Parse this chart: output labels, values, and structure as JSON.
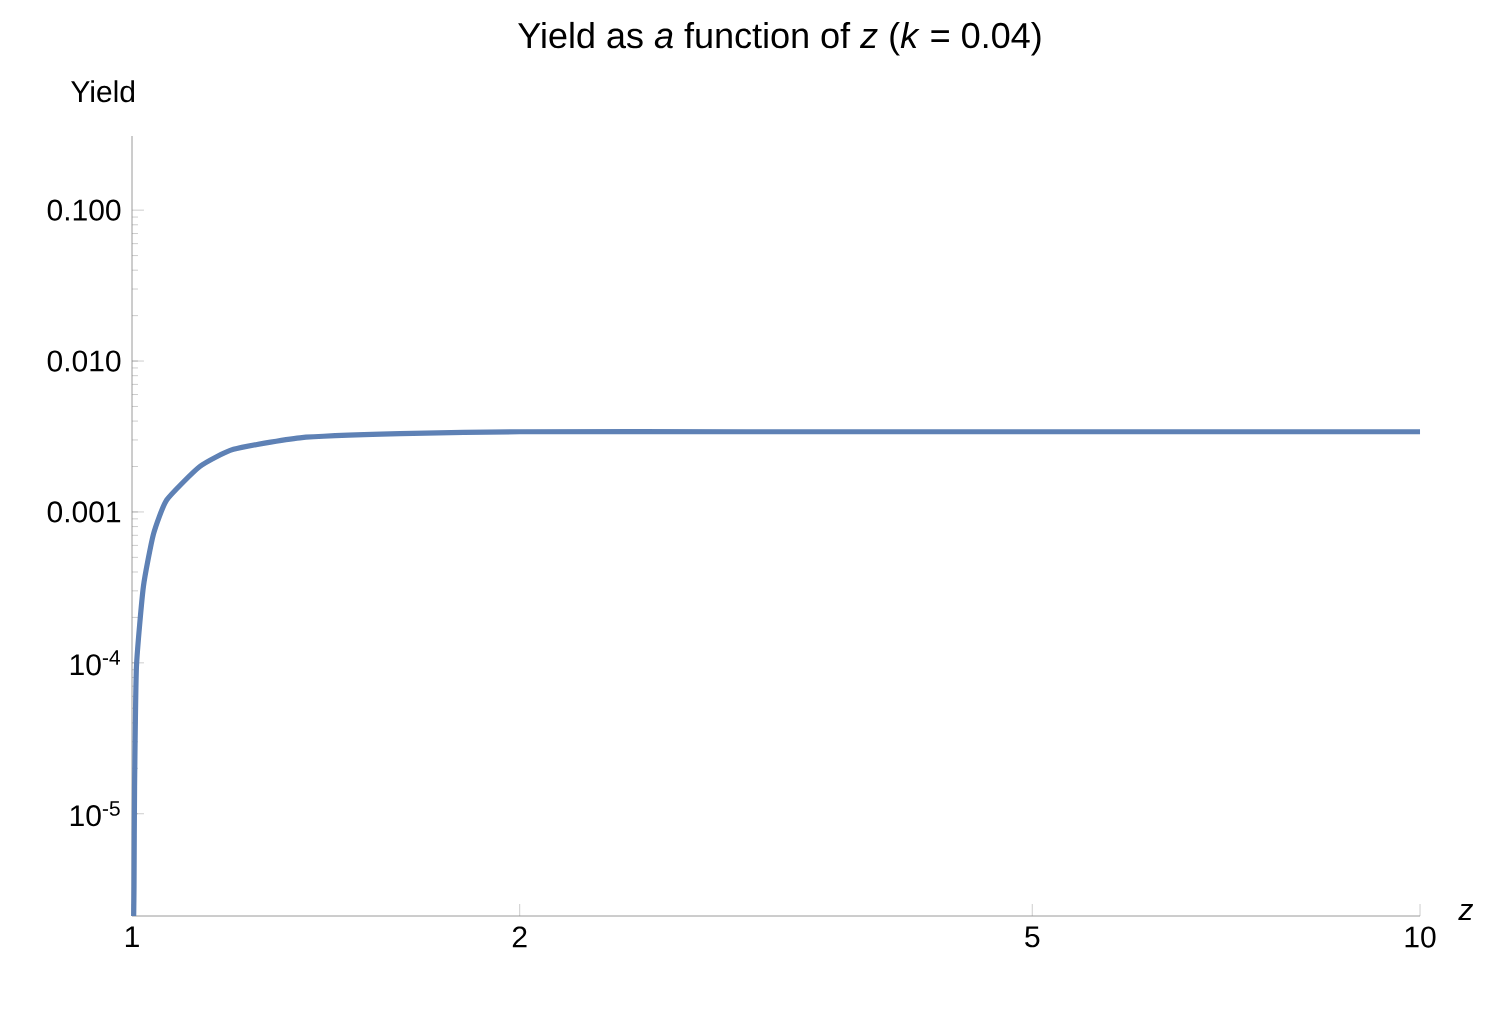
{
  "chart_data": {
    "type": "line",
    "title": "Yield as *a* function of *z* (*k* = 0.04)",
    "xlabel": "*z*",
    "ylabel": "Yield",
    "log": "xy",
    "grid": false,
    "marker": "none",
    "line_style": "solid",
    "xlim": [
      1,
      10
    ],
    "ylim": [
      2.1e-06,
      0.31
    ],
    "xticks": [
      1,
      2,
      5,
      10
    ],
    "yticks": [
      {
        "value": 1e-05,
        "label": "10$^{-5}$"
      },
      {
        "value": 0.0001,
        "label": "10$^{-4}$"
      },
      {
        "value": 0.001,
        "label": "0.001"
      },
      {
        "value": 0.01,
        "label": "0.010"
      },
      {
        "value": 0.1,
        "label": "0.100"
      }
    ],
    "series": [
      {
        "color": "#5e81b5",
        "x": [
          1.003,
          1.0036,
          1.0046,
          1.008,
          1.0206,
          1.039,
          1.064,
          1.129,
          1.199,
          1.35,
          1.615,
          2,
          3,
          5,
          10
        ],
        "values": [
          2.1e-06,
          3.3e-06,
          1.5e-05,
          9.4e-05,
          0.00032,
          0.00071,
          0.0012,
          0.002,
          0.0026,
          0.0031,
          0.0033,
          0.0034,
          0.0034,
          0.0034,
          0.0034
        ]
      }
    ]
  }
}
